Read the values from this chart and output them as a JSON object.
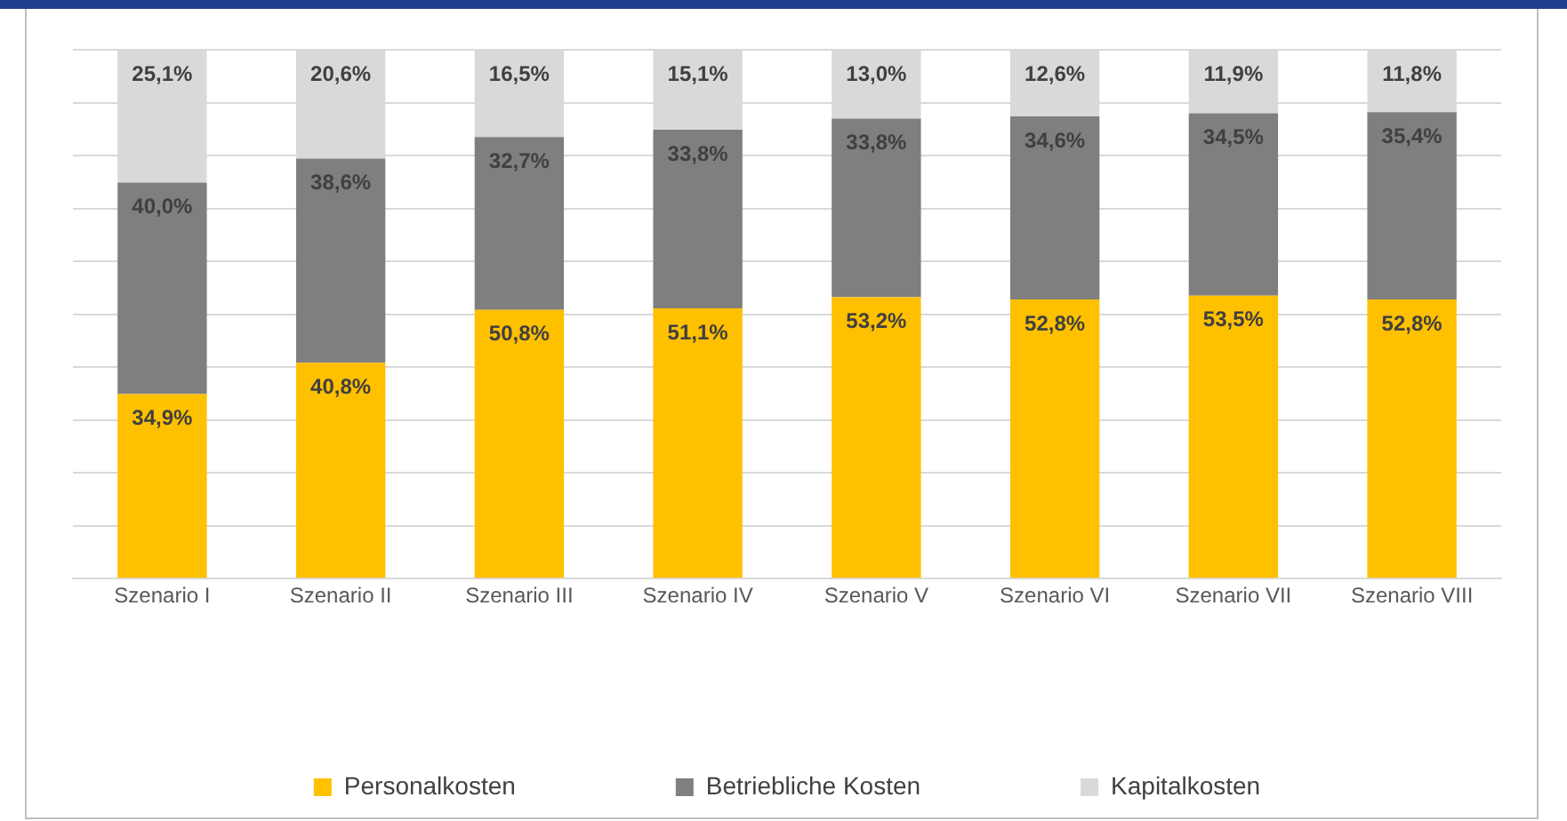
{
  "chart_data": {
    "type": "bar",
    "stacked": true,
    "categories": [
      "Szenario I",
      "Szenario II",
      "Szenario III",
      "Szenario IV",
      "Szenario V",
      "Szenario VI",
      "Szenario VII",
      "Szenario VIII"
    ],
    "series": [
      {
        "name": "Personalkosten",
        "color": "#ffc000",
        "values": [
          34.9,
          40.8,
          50.8,
          51.1,
          53.2,
          52.8,
          53.5,
          52.8
        ],
        "value_labels": [
          "34,9%",
          "40,8%",
          "50,8%",
          "51,1%",
          "53,2%",
          "52,8%",
          "53,5%",
          "52,8%"
        ]
      },
      {
        "name": "Betriebliche Kosten",
        "color": "#7f7f7f",
        "values": [
          40.0,
          38.6,
          32.7,
          33.8,
          33.8,
          34.6,
          34.5,
          35.4
        ],
        "value_labels": [
          "40,0%",
          "38,6%",
          "32,7%",
          "33,8%",
          "33,8%",
          "34,6%",
          "34,5%",
          "35,4%"
        ]
      },
      {
        "name": "Kapitalkosten",
        "color": "#d9d9d9",
        "values": [
          25.1,
          20.6,
          16.5,
          15.1,
          13.0,
          12.6,
          11.9,
          11.8
        ],
        "value_labels": [
          "25,1%",
          "20,6%",
          "16,5%",
          "15,1%",
          "13,0%",
          "12,6%",
          "11,9%",
          "11,8%"
        ]
      }
    ],
    "ylim": [
      0,
      100
    ],
    "yticks": [
      {
        "value": 0,
        "label": null
      },
      {
        "value": 10,
        "label": null
      },
      {
        "value": 20,
        "label": null
      },
      {
        "value": 30,
        "label": null
      },
      {
        "value": 40,
        "label": null
      },
      {
        "value": 50,
        "label": null
      },
      {
        "value": 60,
        "label": null
      },
      {
        "value": 70,
        "label": null
      },
      {
        "value": 80,
        "label": null
      },
      {
        "value": 90,
        "label": null
      },
      {
        "value": 100,
        "label": null
      }
    ],
    "tick_labels": "x",
    "grid": "y",
    "legend": "bottom"
  }
}
